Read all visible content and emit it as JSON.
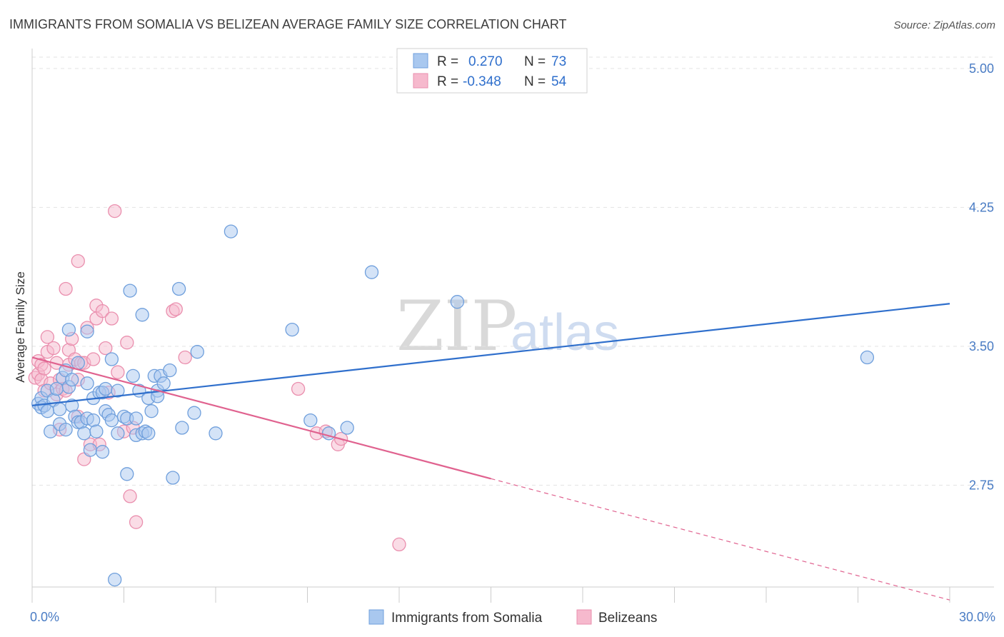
{
  "header": {
    "title": "IMMIGRANTS FROM SOMALIA VS BELIZEAN AVERAGE FAMILY SIZE CORRELATION CHART",
    "source": "Source: ZipAtlas.com"
  },
  "watermark": {
    "zip": "ZIP",
    "atlas": "atlas"
  },
  "legend": {
    "series1": {
      "r_label": "R =",
      "r_value": "0.270",
      "n_label": "N =",
      "n_value": "73"
    },
    "series2": {
      "r_label": "R =",
      "r_value": "-0.348",
      "n_label": "N =",
      "n_value": "54"
    }
  },
  "colors": {
    "blue_fill": "#a9c8ef",
    "blue_stroke": "#6f9fdc",
    "blue_line": "#2f6fcc",
    "pink_fill": "#f6b9cd",
    "pink_stroke": "#ea8fae",
    "pink_line": "#e0628f",
    "grid": "#e3e3e3"
  },
  "chart_data": {
    "type": "scatter",
    "ylabel": "Average Family Size",
    "xlim": [
      0,
      30
    ],
    "ylim": [
      2.2,
      5.1
    ],
    "x_tick_labels": [
      "0.0%",
      "30.0%"
    ],
    "y_ticks": [
      {
        "value": 5.0,
        "label": "5.00"
      },
      {
        "value": 4.25,
        "label": "4.25"
      },
      {
        "value": 3.5,
        "label": "3.50"
      },
      {
        "value": 2.75,
        "label": "2.75"
      }
    ],
    "series": [
      {
        "name": "Immigrants from Somalia",
        "color": "#a9c8ef",
        "points": [
          [
            0.2,
            3.19
          ],
          [
            0.3,
            3.22
          ],
          [
            0.3,
            3.17
          ],
          [
            0.4,
            3.18
          ],
          [
            0.5,
            3.26
          ],
          [
            0.5,
            3.15
          ],
          [
            0.6,
            3.04
          ],
          [
            0.7,
            3.21
          ],
          [
            0.8,
            3.27
          ],
          [
            0.9,
            3.16
          ],
          [
            0.9,
            3.08
          ],
          [
            1.0,
            3.33
          ],
          [
            1.1,
            3.05
          ],
          [
            1.1,
            3.37
          ],
          [
            1.2,
            3.59
          ],
          [
            1.2,
            3.28
          ],
          [
            1.3,
            3.18
          ],
          [
            1.3,
            3.32
          ],
          [
            1.4,
            3.12
          ],
          [
            1.5,
            3.09
          ],
          [
            1.5,
            3.41
          ],
          [
            1.6,
            3.09
          ],
          [
            1.7,
            3.03
          ],
          [
            1.8,
            3.11
          ],
          [
            1.8,
            3.58
          ],
          [
            1.8,
            3.3
          ],
          [
            1.9,
            2.94
          ],
          [
            2.0,
            3.22
          ],
          [
            2.0,
            3.1
          ],
          [
            2.1,
            3.04
          ],
          [
            2.2,
            3.25
          ],
          [
            2.3,
            3.25
          ],
          [
            2.3,
            2.93
          ],
          [
            2.4,
            3.27
          ],
          [
            2.4,
            3.15
          ],
          [
            2.5,
            3.13
          ],
          [
            2.6,
            3.43
          ],
          [
            2.6,
            3.1
          ],
          [
            2.7,
            2.24
          ],
          [
            2.8,
            3.03
          ],
          [
            2.8,
            3.26
          ],
          [
            3.0,
            3.12
          ],
          [
            3.1,
            3.11
          ],
          [
            3.1,
            2.81
          ],
          [
            3.2,
            3.8
          ],
          [
            3.3,
            3.34
          ],
          [
            3.4,
            3.11
          ],
          [
            3.4,
            3.02
          ],
          [
            3.5,
            3.26
          ],
          [
            3.6,
            3.67
          ],
          [
            3.6,
            3.03
          ],
          [
            3.7,
            3.04
          ],
          [
            3.8,
            3.22
          ],
          [
            3.8,
            3.03
          ],
          [
            3.9,
            3.15
          ],
          [
            4.0,
            3.34
          ],
          [
            4.1,
            3.26
          ],
          [
            4.1,
            3.23
          ],
          [
            4.2,
            3.34
          ],
          [
            4.3,
            3.3
          ],
          [
            4.5,
            3.37
          ],
          [
            4.6,
            2.79
          ],
          [
            4.8,
            3.81
          ],
          [
            4.9,
            3.06
          ],
          [
            5.3,
            3.14
          ],
          [
            5.4,
            3.47
          ],
          [
            6.0,
            3.03
          ],
          [
            6.5,
            4.12
          ],
          [
            8.5,
            3.59
          ],
          [
            9.1,
            3.1
          ],
          [
            9.7,
            3.03
          ],
          [
            10.3,
            3.06
          ],
          [
            11.1,
            3.9
          ],
          [
            13.9,
            3.74
          ],
          [
            27.3,
            3.44
          ]
        ]
      },
      {
        "name": "Belizeans",
        "color": "#f6b9cd",
        "points": [
          [
            0.1,
            3.33
          ],
          [
            0.2,
            3.35
          ],
          [
            0.2,
            3.42
          ],
          [
            0.3,
            3.4
          ],
          [
            0.3,
            3.32
          ],
          [
            0.4,
            3.38
          ],
          [
            0.4,
            3.26
          ],
          [
            0.5,
            3.47
          ],
          [
            0.5,
            3.55
          ],
          [
            0.6,
            3.3
          ],
          [
            0.7,
            3.49
          ],
          [
            0.8,
            3.41
          ],
          [
            0.8,
            3.24
          ],
          [
            0.9,
            3.05
          ],
          [
            0.9,
            3.32
          ],
          [
            1.0,
            3.27
          ],
          [
            1.1,
            3.81
          ],
          [
            1.1,
            3.26
          ],
          [
            1.2,
            3.48
          ],
          [
            1.2,
            3.4
          ],
          [
            1.3,
            3.54
          ],
          [
            1.4,
            3.43
          ],
          [
            1.5,
            3.32
          ],
          [
            1.5,
            3.12
          ],
          [
            1.5,
            3.96
          ],
          [
            1.6,
            3.41
          ],
          [
            1.7,
            3.41
          ],
          [
            1.7,
            2.89
          ],
          [
            1.8,
            3.6
          ],
          [
            1.9,
            2.97
          ],
          [
            2.0,
            3.43
          ],
          [
            2.1,
            3.65
          ],
          [
            2.1,
            3.72
          ],
          [
            2.2,
            2.97
          ],
          [
            2.3,
            3.69
          ],
          [
            2.4,
            3.49
          ],
          [
            2.5,
            3.25
          ],
          [
            2.6,
            3.65
          ],
          [
            2.7,
            4.23
          ],
          [
            2.8,
            3.36
          ],
          [
            3.0,
            3.04
          ],
          [
            3.1,
            3.52
          ],
          [
            3.2,
            2.69
          ],
          [
            3.3,
            3.06
          ],
          [
            3.4,
            2.55
          ],
          [
            4.6,
            3.69
          ],
          [
            4.7,
            3.7
          ],
          [
            5.0,
            3.44
          ],
          [
            8.7,
            3.27
          ],
          [
            9.3,
            3.03
          ],
          [
            9.6,
            3.04
          ],
          [
            10.0,
            2.97
          ],
          [
            10.1,
            3.0
          ],
          [
            12.0,
            2.43
          ]
        ]
      }
    ],
    "trend_lines": [
      {
        "series": "Immigrants from Somalia",
        "x": [
          0.0,
          30.0
        ],
        "y": [
          3.18,
          3.73
        ],
        "dashed_from": null
      },
      {
        "series": "Belizeans",
        "x": [
          0.0,
          30.0
        ],
        "y": [
          3.44,
          2.13
        ],
        "dashed_from": 15.0
      }
    ]
  }
}
